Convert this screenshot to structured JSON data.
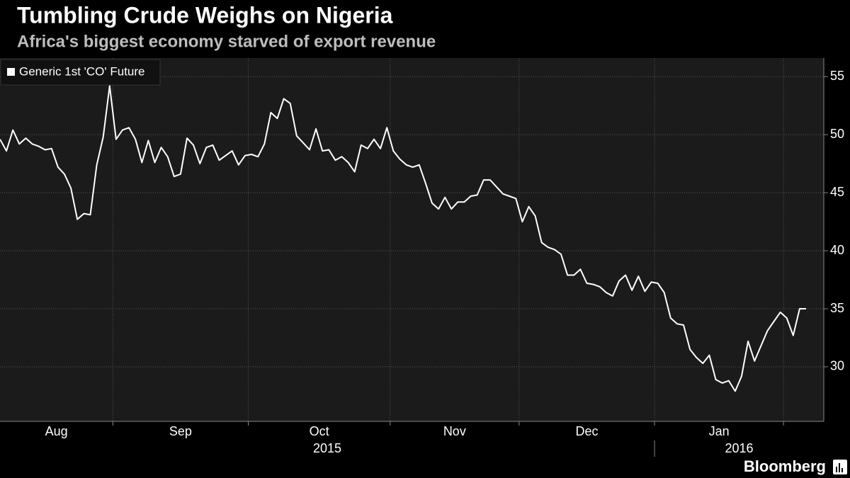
{
  "chart_data": {
    "type": "line",
    "title": "Tumbling Crude Weighs on Nigeria",
    "subtitle": "Africa's biggest economy starved of export revenue",
    "categories": [
      "Aug",
      "Sep",
      "Oct",
      "Nov",
      "Dec",
      "Jan",
      null
    ],
    "year_labels": [
      "2015",
      "2016"
    ],
    "series": [
      {
        "name": "Generic 1st 'CO' Future",
        "color": "#ffffff",
        "values": [
          [
            49.6,
            48.6,
            50.4,
            49.2,
            49.7,
            49.2,
            49.0,
            48.7,
            48.8,
            47.2,
            46.6,
            45.4,
            42.7,
            43.2,
            43.1,
            47.4,
            49.8,
            54.2
          ],
          [
            49.6,
            50.4,
            50.6,
            49.6,
            47.6,
            49.5,
            47.6,
            48.9,
            48.1,
            46.4,
            46.6,
            49.7,
            49.1,
            47.5,
            48.9,
            49.1,
            47.8,
            48.2,
            48.6,
            47.4,
            48.2
          ],
          [
            48.3,
            48.1,
            49.2,
            51.9,
            51.4,
            53.1,
            52.7,
            49.9,
            49.3,
            48.7,
            50.5,
            48.6,
            48.7,
            47.8,
            48.1,
            47.6,
            46.8,
            49.1,
            48.8,
            49.6,
            48.8,
            50.6
          ],
          [
            48.6,
            47.9,
            47.4,
            47.2,
            47.4,
            45.8,
            44.1,
            43.6,
            44.6,
            43.6,
            44.2,
            44.2,
            44.7,
            44.8,
            46.1,
            46.1,
            45.5,
            44.9,
            44.7,
            44.5
          ],
          [
            42.5,
            43.8,
            43.0,
            40.7,
            40.3,
            40.1,
            39.7,
            37.9,
            37.9,
            38.4,
            37.2,
            37.1,
            36.9,
            36.4,
            36.1,
            37.4,
            37.9,
            36.6,
            37.8,
            36.5,
            37.3
          ],
          [
            37.2,
            36.4,
            34.2,
            33.7,
            33.6,
            31.5,
            30.8,
            30.3,
            31.0,
            28.9,
            28.6,
            28.8,
            27.9,
            29.2,
            32.2,
            30.5,
            31.8,
            33.1,
            33.9,
            34.7
          ],
          [
            34.2,
            32.7,
            35.0,
            35.0
          ]
        ]
      }
    ],
    "ylim": [
      25.3,
      56.6
    ],
    "yticks": [
      30,
      35,
      40,
      45,
      50,
      55
    ],
    "grid": true,
    "legend": "top-left",
    "source": "Bloomberg"
  }
}
